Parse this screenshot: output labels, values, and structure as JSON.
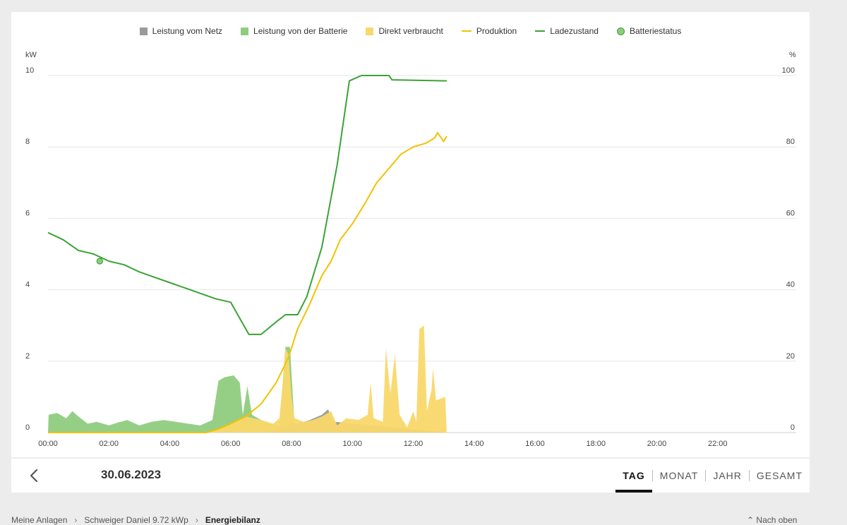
{
  "legend": [
    {
      "label": "Leistung vom Netz",
      "type": "box",
      "color": "#9a9a9a"
    },
    {
      "label": "Leistung von der Batterie",
      "type": "box",
      "color": "#8fcc80"
    },
    {
      "label": "Direkt verbraucht",
      "type": "box",
      "color": "#f9d86a"
    },
    {
      "label": "Produktion",
      "type": "line",
      "color": "#f2c200"
    },
    {
      "label": "Ladezustand",
      "type": "line",
      "color": "#3aa335"
    },
    {
      "label": "Batteriestatus",
      "type": "dot",
      "color": "#8fcc80"
    }
  ],
  "chart_data": {
    "type": "area",
    "ylabel_left": "kW",
    "ylabel_right": "%",
    "ylim_left": [
      0,
      10
    ],
    "ylim_right": [
      0,
      100
    ],
    "y_ticks_left": [
      "0",
      "2",
      "4",
      "6",
      "8",
      "10"
    ],
    "y_ticks_right": [
      "0",
      "20",
      "40",
      "60",
      "80",
      "100"
    ],
    "xlim_hours": [
      0,
      24
    ],
    "x_ticks": [
      "00:00",
      "02:00",
      "04:00",
      "06:00",
      "08:00",
      "10:00",
      "12:00",
      "14:00",
      "16:00",
      "18:00",
      "20:00",
      "22:00"
    ],
    "grid": "horizontal",
    "legend_position": "top",
    "series": [
      {
        "name": "Ladezustand",
        "kind": "line",
        "axis": "right",
        "color": "#3aa335",
        "points": [
          [
            0,
            56
          ],
          [
            0.5,
            54
          ],
          [
            1,
            51
          ],
          [
            1.5,
            50
          ],
          [
            2,
            48
          ],
          [
            2.5,
            47
          ],
          [
            3,
            45
          ],
          [
            3.5,
            43.5
          ],
          [
            4,
            42
          ],
          [
            4.5,
            40.5
          ],
          [
            5,
            39
          ],
          [
            5.5,
            37.5
          ],
          [
            6,
            36.5
          ],
          [
            6.3,
            32
          ],
          [
            6.6,
            27.5
          ],
          [
            7,
            27.5
          ],
          [
            7.5,
            31
          ],
          [
            7.8,
            33
          ],
          [
            8.2,
            33
          ],
          [
            8.5,
            38
          ],
          [
            9,
            52
          ],
          [
            9.5,
            75
          ],
          [
            9.9,
            98.5
          ],
          [
            10.3,
            100
          ],
          [
            11.2,
            100
          ],
          [
            11.3,
            98.8
          ],
          [
            13.1,
            98.5
          ]
        ]
      },
      {
        "name": "Produktion",
        "kind": "line",
        "axis": "left",
        "color": "#f2c200",
        "points": [
          [
            0,
            0
          ],
          [
            5.2,
            0
          ],
          [
            5.6,
            0.1
          ],
          [
            6,
            0.25
          ],
          [
            6.5,
            0.45
          ],
          [
            7,
            0.8
          ],
          [
            7.5,
            1.4
          ],
          [
            7.9,
            2.1
          ],
          [
            8.2,
            2.9
          ],
          [
            8.6,
            3.6
          ],
          [
            9,
            4.4
          ],
          [
            9.3,
            4.8
          ],
          [
            9.6,
            5.4
          ],
          [
            10,
            5.85
          ],
          [
            10.4,
            6.4
          ],
          [
            10.8,
            7.0
          ],
          [
            11.2,
            7.4
          ],
          [
            11.6,
            7.8
          ],
          [
            12,
            8.0
          ],
          [
            12.4,
            8.1
          ],
          [
            12.7,
            8.25
          ],
          [
            12.8,
            8.4
          ],
          [
            13,
            8.15
          ],
          [
            13.1,
            8.3
          ]
        ]
      },
      {
        "name": "Leistung von der Batterie",
        "kind": "area",
        "axis": "left",
        "color": "#8fcc80",
        "points": [
          [
            0,
            0
          ],
          [
            0.02,
            0.5
          ],
          [
            0.3,
            0.55
          ],
          [
            0.6,
            0.4
          ],
          [
            0.8,
            0.6
          ],
          [
            1,
            0.45
          ],
          [
            1.3,
            0.25
          ],
          [
            1.6,
            0.3
          ],
          [
            2,
            0.2
          ],
          [
            2.3,
            0.28
          ],
          [
            2.6,
            0.35
          ],
          [
            3,
            0.2
          ],
          [
            3.4,
            0.3
          ],
          [
            3.8,
            0.35
          ],
          [
            4.2,
            0.3
          ],
          [
            4.6,
            0.25
          ],
          [
            5,
            0.2
          ],
          [
            5.4,
            0.35
          ],
          [
            5.6,
            1.45
          ],
          [
            5.8,
            1.55
          ],
          [
            6.1,
            1.6
          ],
          [
            6.3,
            1.4
          ],
          [
            6.4,
            0.5
          ],
          [
            6.55,
            1.3
          ],
          [
            6.7,
            0.5
          ],
          [
            7,
            0.35
          ],
          [
            7.3,
            0.25
          ],
          [
            7.6,
            0.2
          ],
          [
            7.8,
            2.4
          ],
          [
            7.95,
            2.4
          ],
          [
            8.1,
            0.2
          ],
          [
            13.1,
            0
          ]
        ]
      },
      {
        "name": "Leistung vom Netz",
        "kind": "area",
        "axis": "left",
        "color": "#9a9a9a",
        "points": [
          [
            0,
            0
          ],
          [
            7.2,
            0
          ],
          [
            7.5,
            0.1
          ],
          [
            8.2,
            0.25
          ],
          [
            8.6,
            0.35
          ],
          [
            9,
            0.5
          ],
          [
            9.2,
            0.65
          ],
          [
            9.4,
            0.3
          ],
          [
            13.1,
            0
          ]
        ]
      },
      {
        "name": "Direkt verbraucht",
        "kind": "area",
        "axis": "left",
        "color": "#f9d86a",
        "points": [
          [
            0,
            0
          ],
          [
            5.2,
            0
          ],
          [
            5.6,
            0.1
          ],
          [
            6,
            0.25
          ],
          [
            6.5,
            0.45
          ],
          [
            7,
            0.35
          ],
          [
            7.4,
            0.25
          ],
          [
            7.6,
            0.4
          ],
          [
            7.7,
            1.3
          ],
          [
            7.8,
            2.35
          ],
          [
            7.9,
            2.2
          ],
          [
            8,
            1.0
          ],
          [
            8.1,
            0.4
          ],
          [
            8.4,
            0.3
          ],
          [
            8.7,
            0.35
          ],
          [
            9,
            0.45
          ],
          [
            9.3,
            0.6
          ],
          [
            9.5,
            0.2
          ],
          [
            9.8,
            0.4
          ],
          [
            10.2,
            0.35
          ],
          [
            10.5,
            0.5
          ],
          [
            10.6,
            1.4
          ],
          [
            10.7,
            0.4
          ],
          [
            11,
            0.3
          ],
          [
            11.1,
            2.35
          ],
          [
            11.25,
            1.1
          ],
          [
            11.4,
            2.2
          ],
          [
            11.55,
            0.5
          ],
          [
            11.8,
            0.15
          ],
          [
            12,
            0.6
          ],
          [
            12.1,
            0.3
          ],
          [
            12.2,
            2.9
          ],
          [
            12.35,
            3.0
          ],
          [
            12.45,
            0.6
          ],
          [
            12.6,
            1.2
          ],
          [
            12.65,
            1.8
          ],
          [
            12.75,
            0.9
          ],
          [
            12.9,
            0.95
          ],
          [
            13.05,
            1.0
          ],
          [
            13.1,
            0
          ]
        ]
      }
    ],
    "markers": [
      {
        "name": "Batteriestatus",
        "x": 1.7,
        "y": 48,
        "axis": "right",
        "color": "#8fcc80"
      }
    ]
  },
  "nav": {
    "date": "30.06.2023",
    "tabs": [
      {
        "label": "TAG",
        "active": true
      },
      {
        "label": "MONAT",
        "active": false
      },
      {
        "label": "JAHR",
        "active": false
      },
      {
        "label": "GESAMT",
        "active": false
      }
    ]
  },
  "breadcrumb": [
    "Meine Anlagen",
    "Schweiger Daniel 9.72 kWp",
    "Energiebilanz"
  ],
  "to_top": "Nach oben"
}
